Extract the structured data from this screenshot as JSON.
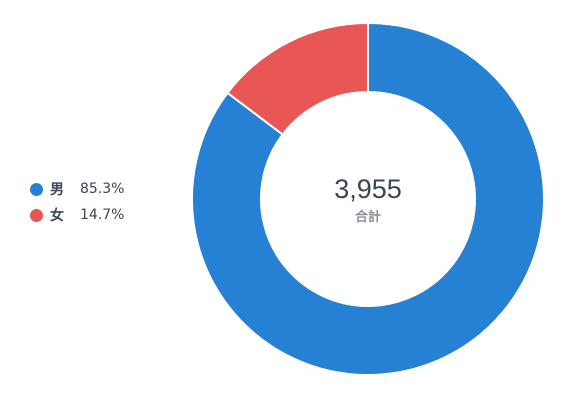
{
  "chart_data": {
    "type": "pie",
    "style": "donut",
    "categories": [
      "男",
      "女"
    ],
    "values": [
      85.3,
      14.7
    ],
    "percent_labels": [
      "85.3%",
      "14.7%"
    ],
    "colors": [
      "#2680d4",
      "#e85656"
    ],
    "center": {
      "total": "3,955",
      "label": "合計"
    },
    "legend_placement": "left"
  }
}
